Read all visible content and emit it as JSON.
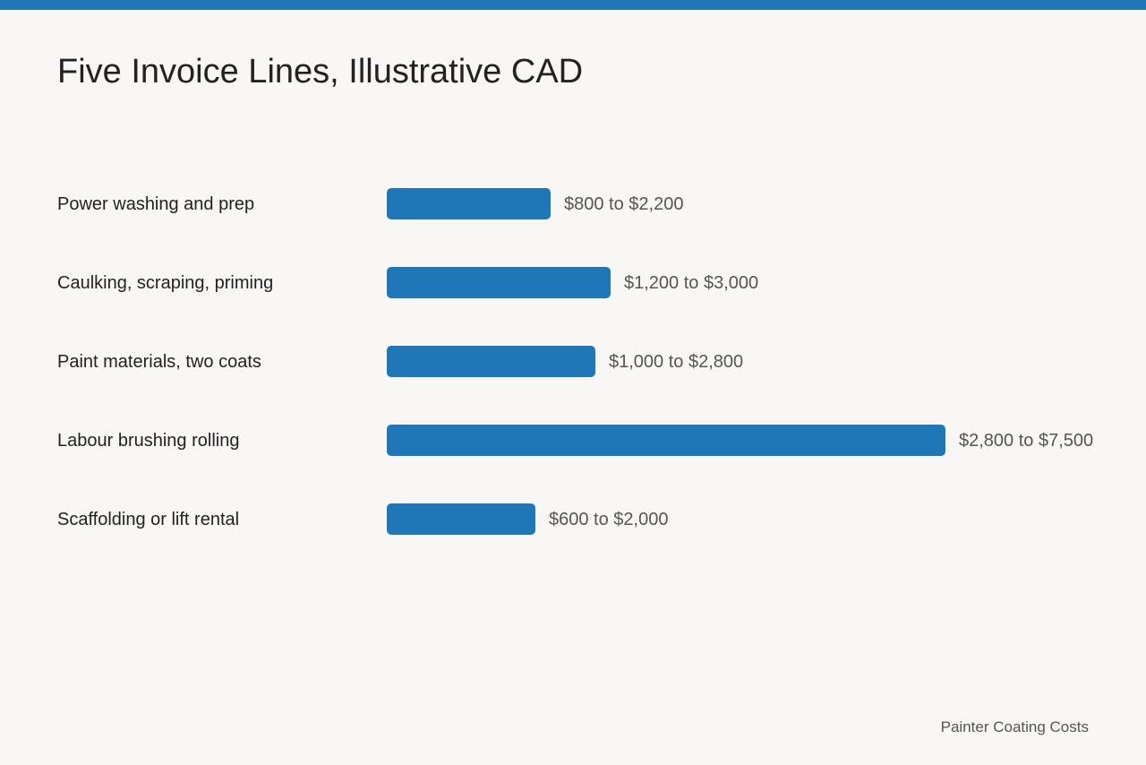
{
  "colors": {
    "background": "#f8f7f5",
    "accent": "#2077b8",
    "text": "#222222",
    "muted": "#555555"
  },
  "header": {
    "title": "Five Invoice Lines, Illustrative CAD"
  },
  "chart_data": {
    "type": "bar",
    "orientation": "horizontal",
    "title": "Five Invoice Lines, Illustrative CAD",
    "xlabel": "",
    "ylabel": "",
    "grid": false,
    "legend": "none",
    "categories": [
      "Power washing and prep",
      "Caulking, scraping, priming",
      "Paint materials, two coats",
      "Labour brushing rolling",
      "Scaffolding or lift rental"
    ],
    "ranges": [
      {
        "low": 800,
        "high": 2200,
        "label": "$800 to $2,200"
      },
      {
        "low": 1200,
        "high": 3000,
        "label": "$1,200 to $3,000"
      },
      {
        "low": 1000,
        "high": 2800,
        "label": "$1,000 to $2,800"
      },
      {
        "low": 2800,
        "high": 7500,
        "label": "$2,800 to $7,500"
      },
      {
        "low": 600,
        "high": 2000,
        "label": "$600 to $2,000"
      }
    ],
    "values": [
      2200,
      3000,
      2800,
      7500,
      2000
    ],
    "xlim": [
      0,
      7500
    ]
  },
  "footer": {
    "source": "Painter Coating Costs"
  }
}
